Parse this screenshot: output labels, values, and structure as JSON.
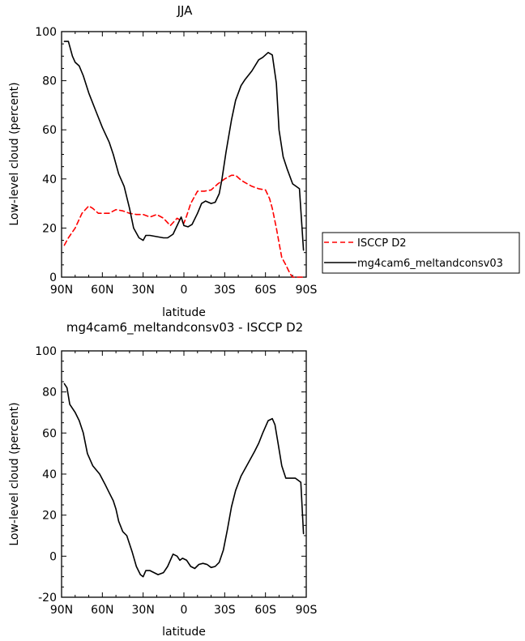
{
  "chart_data": [
    {
      "type": "line",
      "title": "JJA",
      "xlabel": "latitude",
      "ylabel": "Low-level cloud (percent)",
      "xlim": [
        -90,
        90
      ],
      "ylim": [
        0,
        100
      ],
      "x_ticks": [
        -90,
        -60,
        -30,
        0,
        30,
        60,
        90
      ],
      "x_tick_labels": [
        "90N",
        "60N",
        "30N",
        "0",
        "30S",
        "60S",
        "90S"
      ],
      "y_ticks": [
        0,
        20,
        40,
        60,
        80,
        100
      ],
      "y_tick_labels": [
        "0",
        "20",
        "40",
        "60",
        "80",
        "100"
      ],
      "grid": false,
      "legend_placement": "right",
      "series": [
        {
          "name": "ISCCP D2",
          "color": "#ff0000",
          "dash": "dashed",
          "x": [
            -88,
            -85,
            -80,
            -75,
            -70,
            -67,
            -63,
            -60,
            -55,
            -50,
            -45,
            -40,
            -35,
            -30,
            -25,
            -20,
            -15,
            -10,
            -5,
            -2,
            0,
            2,
            5,
            10,
            15,
            20,
            25,
            30,
            35,
            38,
            42,
            45,
            50,
            55,
            60,
            63,
            65,
            68,
            70,
            72,
            75,
            78,
            80,
            85,
            88
          ],
          "y": [
            13,
            16,
            20,
            26,
            29,
            28,
            26,
            26,
            26,
            27.5,
            27,
            26,
            25.5,
            25.5,
            24.5,
            25.5,
            24,
            21,
            24,
            23,
            22,
            25,
            30,
            35,
            35,
            35.5,
            38,
            40,
            41.5,
            41.5,
            39.5,
            38.5,
            37,
            36,
            35.5,
            32,
            28,
            20,
            14,
            8,
            5,
            1.5,
            0,
            0,
            0
          ]
        },
        {
          "name": "mg4cam6_meltandconsv03",
          "color": "#000000",
          "dash": "solid",
          "x": [
            -88,
            -85,
            -82,
            -80,
            -77,
            -74,
            -70,
            -65,
            -60,
            -55,
            -52,
            -48,
            -44,
            -40,
            -37,
            -33,
            -30,
            -28,
            -25,
            -20,
            -15,
            -12,
            -8,
            -5,
            -2,
            0,
            3,
            6,
            10,
            13,
            16,
            20,
            23,
            26,
            28,
            31,
            35,
            38,
            42,
            45,
            50,
            55,
            58,
            62,
            65,
            68,
            70,
            73,
            76,
            80,
            85,
            88
          ],
          "y": [
            96,
            96,
            90,
            87.5,
            86,
            82,
            75,
            68,
            61,
            55,
            50,
            42,
            37,
            28,
            20,
            16,
            15,
            17,
            17,
            16.5,
            16,
            16,
            17.5,
            21,
            24.5,
            21,
            20.5,
            21.5,
            26,
            30,
            31,
            30,
            30.5,
            34,
            40,
            51,
            64,
            72,
            78,
            80.5,
            84,
            88.5,
            89.5,
            91.5,
            90.5,
            79,
            60,
            49,
            44,
            38,
            36,
            11
          ]
        }
      ]
    },
    {
      "type": "line",
      "title": "mg4cam6_meltandconsv03 - ISCCP D2",
      "xlabel": "latitude",
      "ylabel": "Low-level cloud (percent)",
      "xlim": [
        -90,
        90
      ],
      "ylim": [
        -20,
        100
      ],
      "x_ticks": [
        -90,
        -60,
        -30,
        0,
        30,
        60,
        90
      ],
      "x_tick_labels": [
        "90N",
        "60N",
        "30N",
        "0",
        "30S",
        "60S",
        "90S"
      ],
      "y_ticks": [
        -20,
        0,
        20,
        40,
        60,
        80,
        100
      ],
      "y_tick_labels": [
        "-20",
        "0",
        "20",
        "40",
        "60",
        "80",
        "100"
      ],
      "grid": false,
      "series": [
        {
          "color": "#000000",
          "dash": "solid",
          "x": [
            -88,
            -86,
            -84,
            -80,
            -77,
            -74,
            -71,
            -67,
            -62,
            -58,
            -55,
            -52,
            -50,
            -48,
            -45,
            -42,
            -38,
            -35,
            -32,
            -30,
            -28,
            -25,
            -22,
            -19,
            -15,
            -12,
            -8,
            -5,
            -3,
            -1,
            2,
            5,
            8,
            11,
            14,
            17,
            20,
            23,
            26,
            29,
            32,
            35,
            38,
            42,
            47,
            52,
            55,
            58,
            62,
            65,
            67,
            69,
            72,
            75,
            78,
            82,
            86,
            88
          ],
          "y": [
            84,
            82,
            74,
            70,
            66,
            60,
            50,
            44,
            40,
            35,
            31,
            27,
            23,
            17,
            12,
            10,
            2,
            -5,
            -9,
            -10,
            -7,
            -7,
            -8,
            -9,
            -8,
            -5,
            1,
            0,
            -2,
            -1,
            -2,
            -5,
            -6,
            -4,
            -3.5,
            -4,
            -5.5,
            -5,
            -3,
            3,
            13,
            24,
            32,
            39,
            45,
            51,
            55,
            60,
            66,
            67,
            64,
            56,
            44,
            38,
            38,
            38,
            36,
            11
          ]
        }
      ]
    }
  ]
}
